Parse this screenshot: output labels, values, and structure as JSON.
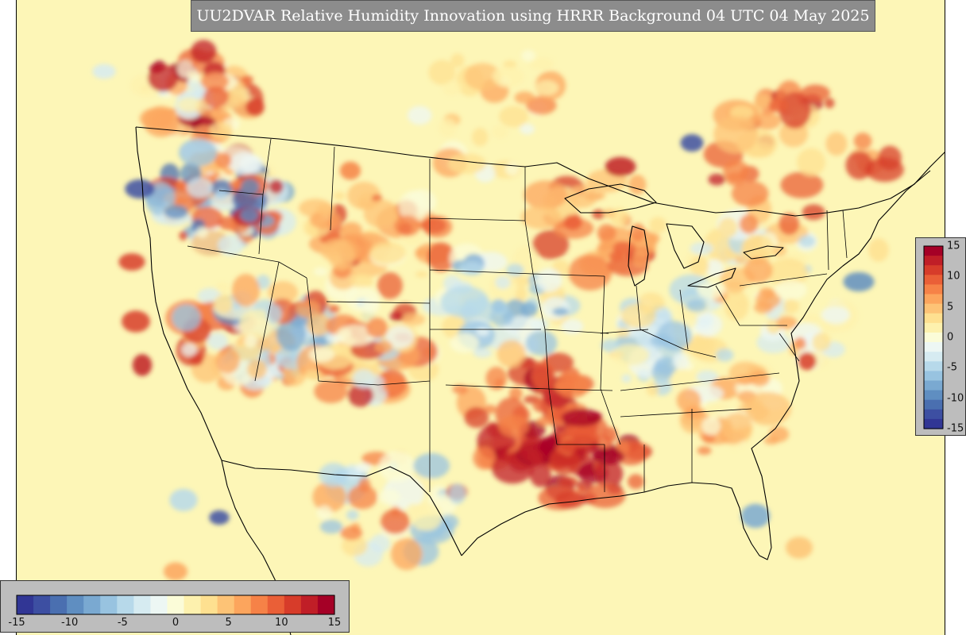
{
  "title": "UU2DVAR Relative Humidity Innovation using HRRR Background 04 UTC 04 May 2025",
  "colorbar": {
    "min": -15,
    "max": 15,
    "horizontal_ticks": [
      {
        "value": -15,
        "label": "-15"
      },
      {
        "value": -10,
        "label": "-10"
      },
      {
        "value": -5,
        "label": "-5"
      },
      {
        "value": 0,
        "label": "0"
      },
      {
        "value": 5,
        "label": "5"
      },
      {
        "value": 10,
        "label": "10"
      },
      {
        "value": 15,
        "label": "15"
      }
    ],
    "vertical_ticks": [
      {
        "value": 15,
        "label": "15"
      },
      {
        "value": 10,
        "label": "10"
      },
      {
        "value": 5,
        "label": "5"
      },
      {
        "value": 0,
        "label": "0"
      },
      {
        "value": -5,
        "label": "-5"
      },
      {
        "value": -10,
        "label": "-10"
      },
      {
        "value": -15,
        "label": "-15"
      }
    ],
    "colors": [
      "#313695",
      "#3d4fa2",
      "#4a6fb0",
      "#5f8ec1",
      "#7aa9d1",
      "#98c3e0",
      "#b7d9ea",
      "#d6ebf1",
      "#edf7f4",
      "#fbfcd8",
      "#fdf1ae",
      "#fee090",
      "#fdc376",
      "#fca55d",
      "#f68247",
      "#ea5f37",
      "#d73c2a",
      "#c01e27",
      "#a50026"
    ],
    "background": "#fdf6b7",
    "boundary": "#000000"
  }
}
